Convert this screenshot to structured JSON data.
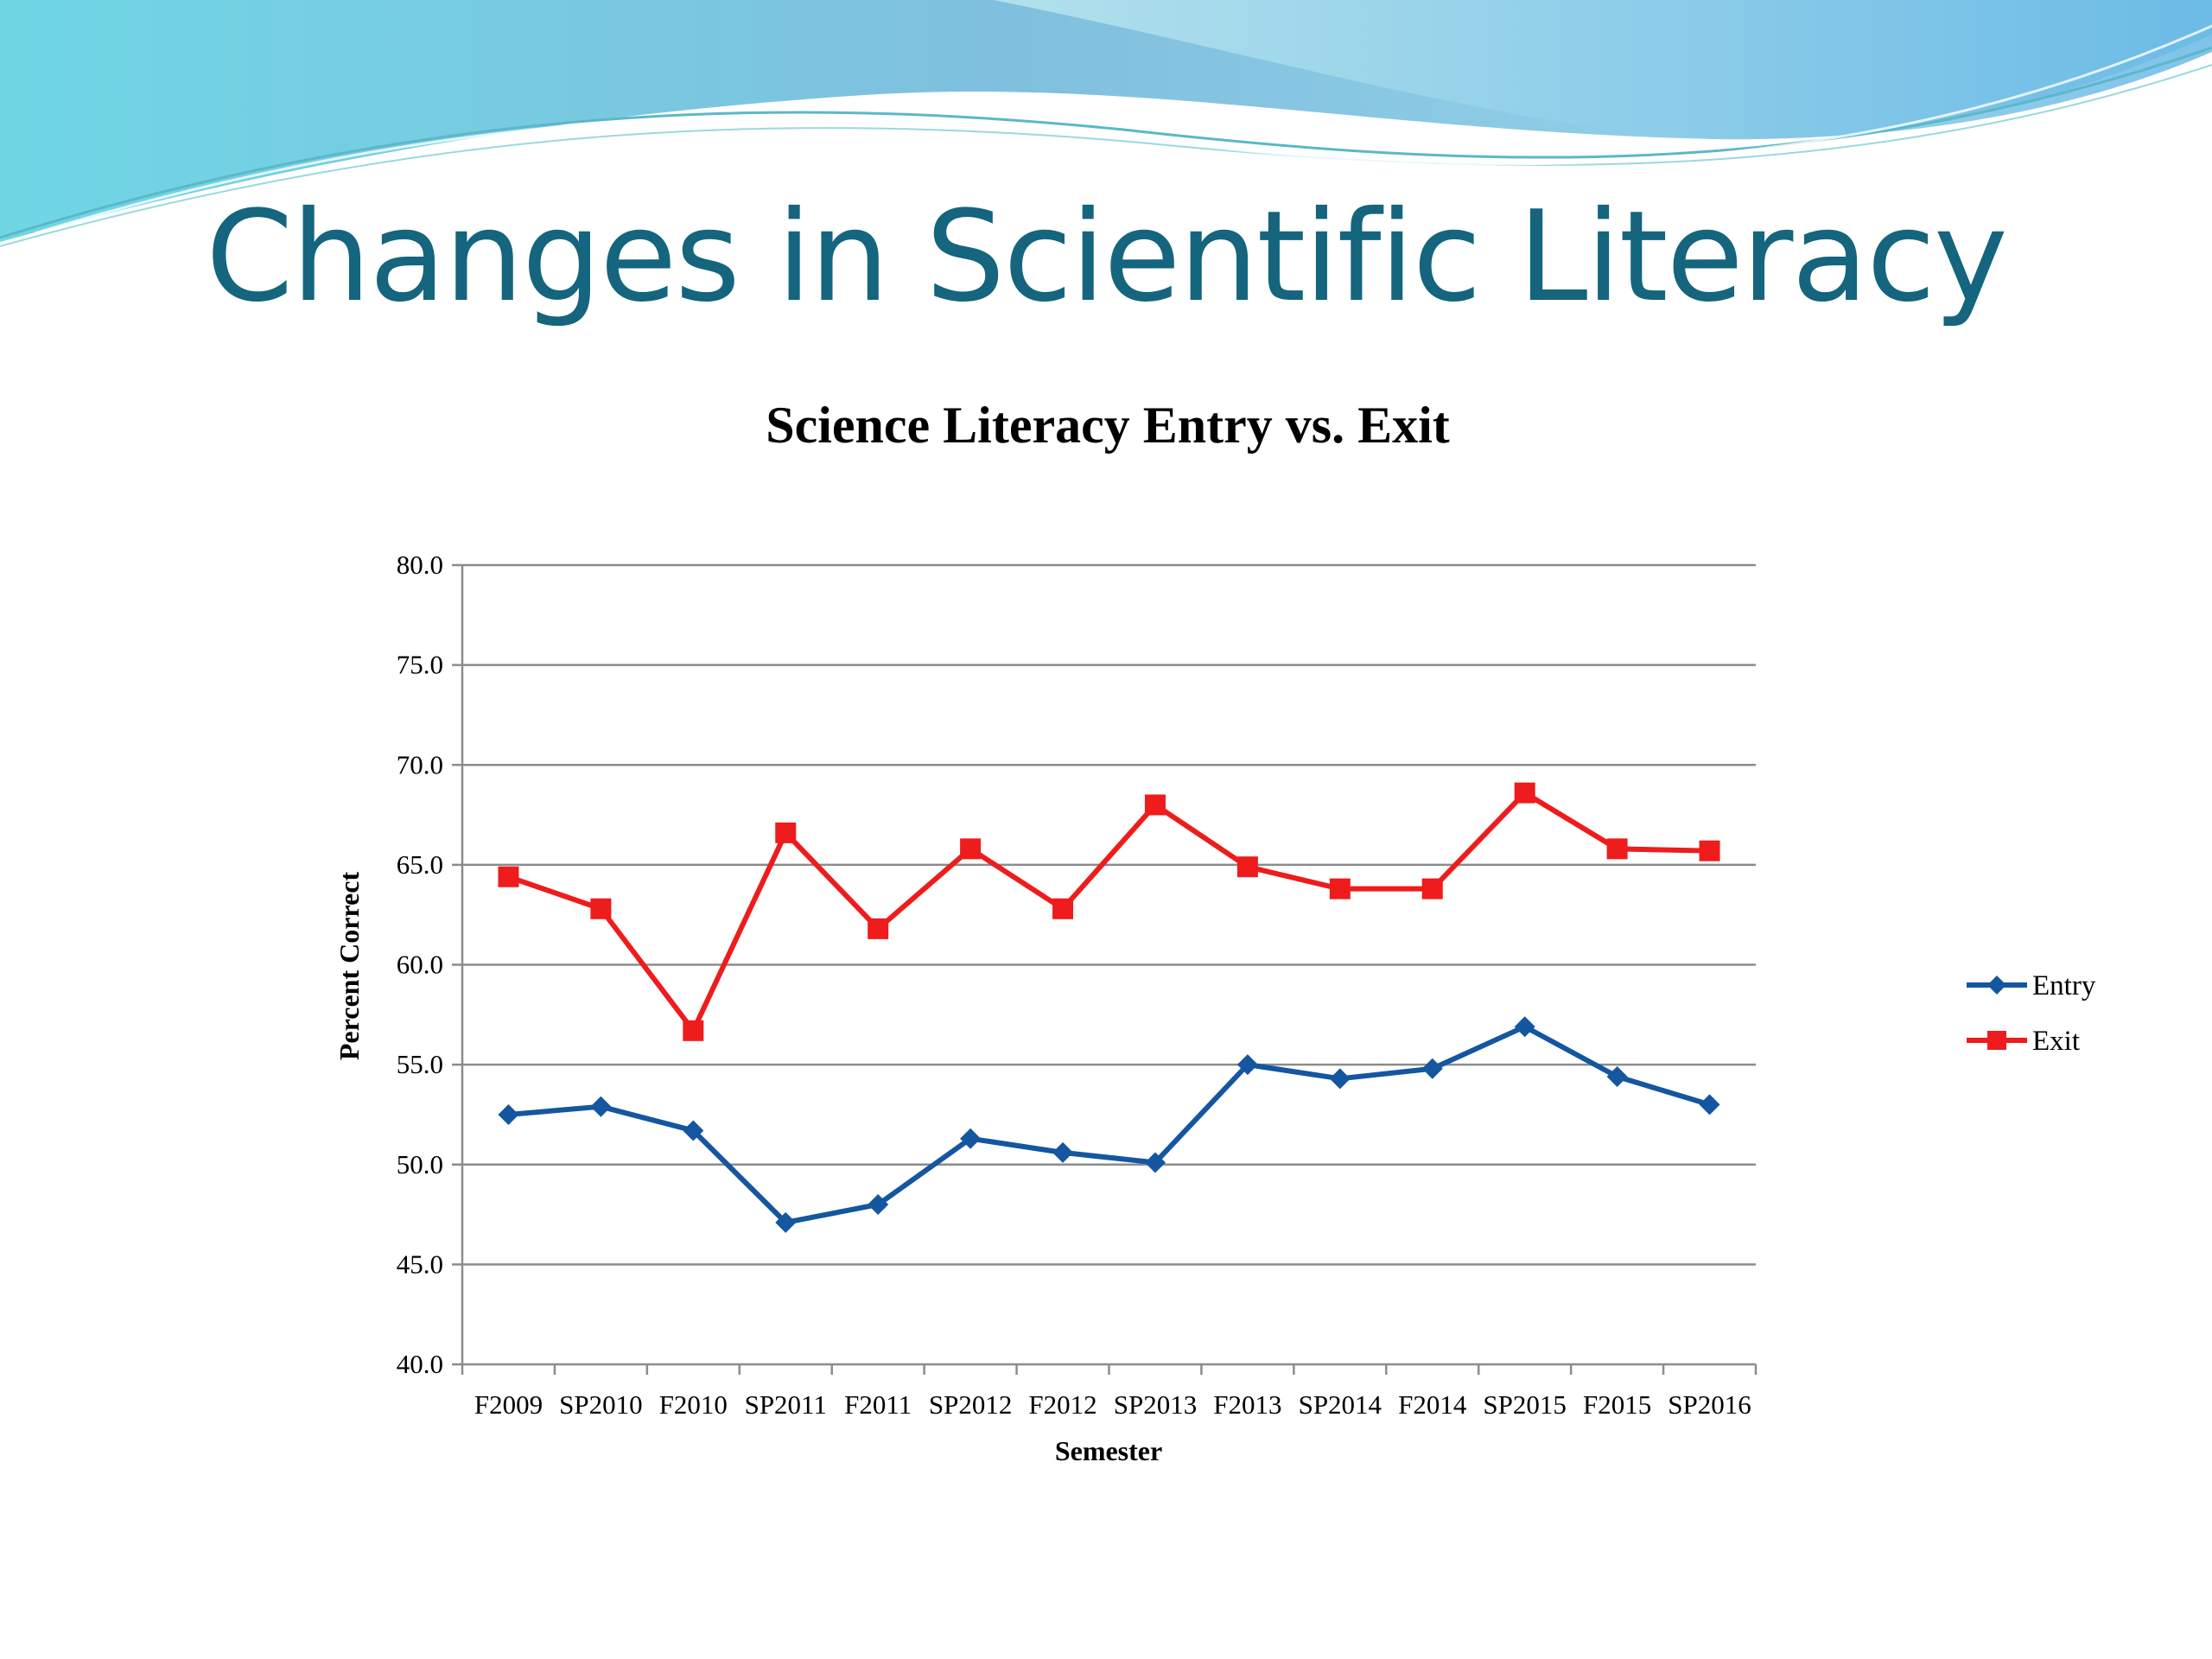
{
  "slide": {
    "title": "Changes in Scientific Literacy"
  },
  "colors": {
    "title": "#14657d",
    "entry": "#1456a0",
    "exit": "#ee1c1c",
    "grid": "#8c8c8c"
  },
  "chart_data": {
    "type": "line",
    "title": "Science Literacy Entry vs. Exit",
    "xlabel": "Semester",
    "ylabel": "Percent Correct",
    "ylim": [
      40,
      80
    ],
    "yticks": [
      "40.0",
      "45.0",
      "50.0",
      "55.0",
      "60.0",
      "65.0",
      "70.0",
      "75.0",
      "80.0"
    ],
    "grid": true,
    "legend_position": "right",
    "categories": [
      "F2009",
      "SP2010",
      "F2010",
      "SP2011",
      "F2011",
      "SP2012",
      "F2012",
      "SP2013",
      "F2013",
      "SP2014",
      "F2014",
      "SP2015",
      "F2015",
      "SP2016"
    ],
    "series": [
      {
        "name": "Entry",
        "marker": "diamond",
        "color": "#1456a0",
        "values": [
          52.5,
          52.9,
          51.7,
          47.1,
          48.0,
          51.3,
          50.6,
          50.1,
          55.0,
          54.3,
          54.8,
          56.9,
          54.4,
          53.0
        ]
      },
      {
        "name": "Exit",
        "marker": "square",
        "color": "#ee1c1c",
        "values": [
          64.4,
          62.8,
          56.7,
          66.6,
          61.8,
          65.8,
          62.8,
          68.0,
          64.9,
          63.8,
          63.8,
          68.6,
          65.8,
          65.7
        ]
      }
    ]
  }
}
